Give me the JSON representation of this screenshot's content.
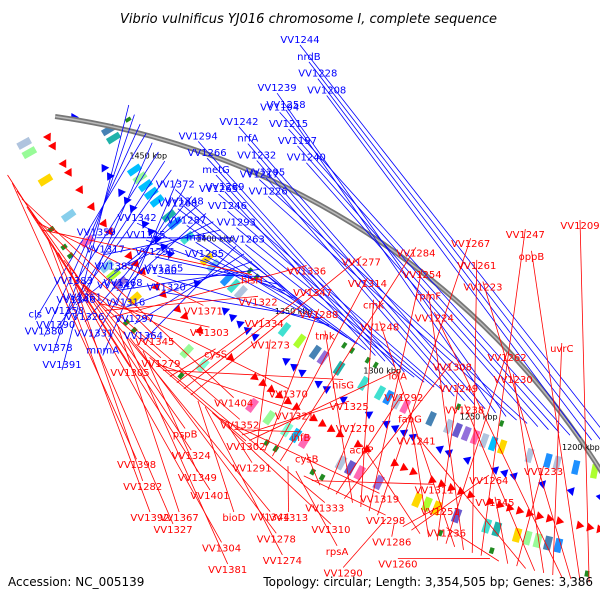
{
  "title": "Vibrio vulnificus YJ016 chromosome I, complete sequence",
  "footer": {
    "accession": "Accession: NC_005139",
    "stats": "Topology: circular; Length: 3,354,505 bp; Genes: 3,386"
  },
  "kbp_markers": [
    "1200 kbp",
    "1250 kbp",
    "1300 kbp",
    "1350 kbp",
    "1400 kbp",
    "1450 kbp"
  ],
  "colors": {
    "plus_strand_labels": "#0000ff",
    "minus_strand_labels": "#ff0000",
    "backbone": "#777777",
    "tick": "#228b22"
  },
  "plus_strand_labels": [
    "VV1244",
    "nrdB",
    "VV1228",
    "VV1208",
    "VV1194",
    "VV1215",
    "VV1197",
    "VV1240",
    "VV1217",
    "VV1226",
    "VV1239",
    "VV1258",
    "VV1242",
    "nrfA",
    "VV1232",
    "VV1295",
    "VV1265",
    "VV1246",
    "VV1293",
    "VV1263",
    "VV1294",
    "VV1266",
    "metG",
    "VV1289",
    "VV1268",
    "VV1287",
    "maf",
    "VV1285",
    "VV1360",
    "VV1320",
    "VV1372",
    "VV1348",
    "VV1342",
    "VV1315",
    "VV1296",
    "VV1365",
    "VV1341",
    "VV1316",
    "VV1297",
    "VV1364",
    "VV1359",
    "VV1317",
    "VV1385",
    "VV1368",
    "VV1346",
    "VV1326",
    "VV1331",
    "mnmA",
    "VV1390",
    "VV1358",
    "VV1383",
    "VV1361",
    "cls",
    "VV1380",
    "VV1378",
    "VV1391"
  ],
  "minus_strand_labels": [
    "VV1209",
    "oppB",
    "VV1223",
    "VV1224",
    "uvrC",
    "VV1230",
    "VV1238",
    "VV1241",
    "VV1233",
    "VV1245",
    "VV1236",
    "VV1260",
    "VV1247",
    "VV1261",
    "rpmF",
    "VV1248",
    "VV1262",
    "VV1249",
    "fabG",
    "acpP",
    "VV1264",
    "VV1251",
    "VV1286",
    "VV1290",
    "VV1267",
    "VV1254",
    "cmk",
    "tmk",
    "VV1308",
    "VV1292",
    "VV1270",
    "cysB",
    "VV1311",
    "VV1298",
    "rpsA",
    "VV1313",
    "VV1284",
    "VV1314",
    "VV1288",
    "VV1273",
    "lolA",
    "VV1325",
    "ihfB",
    "VV1291",
    "VV1319",
    "VV1310",
    "VV1274",
    "bioD",
    "VV1277",
    "VV1347",
    "VV1334",
    "cysS",
    "hisG",
    "VV1321",
    "VV1302",
    "VV1349",
    "VV1333",
    "VV1278",
    "VV1381",
    "VV1367",
    "VV1336",
    "VV1322",
    "VV1303",
    "VV1279",
    "VV1370",
    "VV1352",
    "VV1324",
    "VV1282",
    "VV1344",
    "VV1304",
    "VV1327",
    "VV1392",
    "hisH",
    "VV1371",
    "VV1345",
    "VV1305",
    "VV1404",
    "pspB",
    "VV1398",
    "VV1401"
  ]
}
